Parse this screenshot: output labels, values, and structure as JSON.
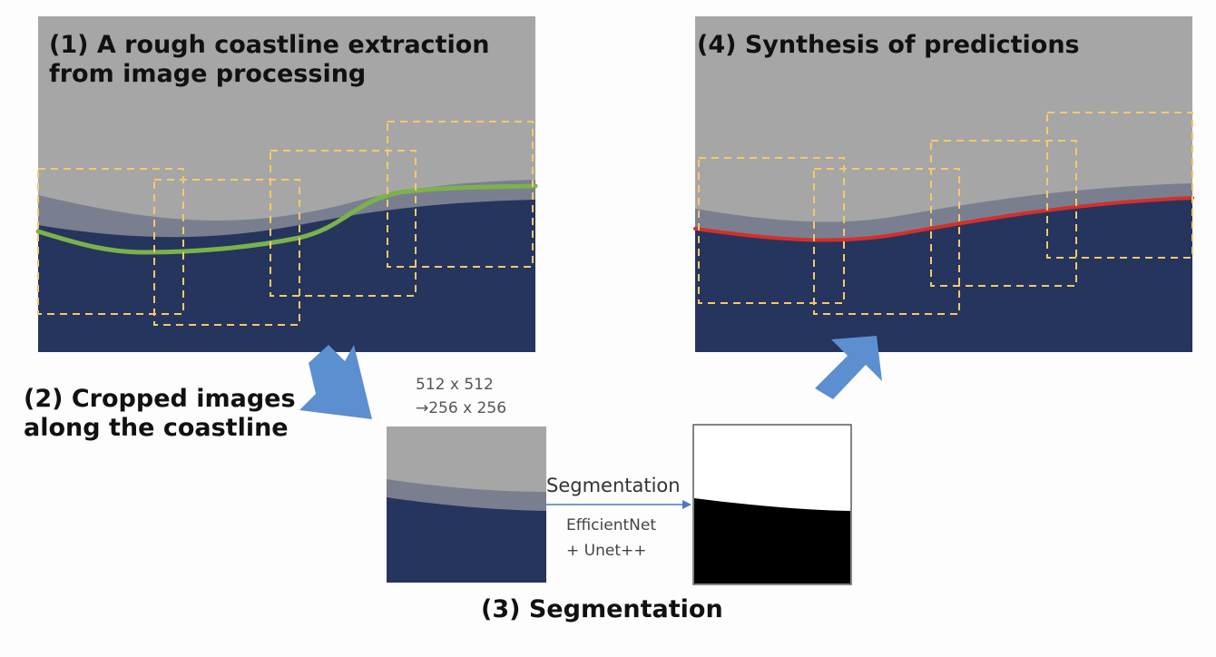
{
  "steps": {
    "step1_title": "(1) A rough coastline extraction from image processing",
    "step2_title": "(2) Cropped images along the coastline",
    "step3_title": "(3) Segmentation",
    "step4_title": "(4) Synthesis of predictions"
  },
  "crop": {
    "size_original": "512 x 512",
    "size_resized": "→256 x 256"
  },
  "segmentation": {
    "arrow_label": "Segmentation",
    "model_line1": "EfficientNet",
    "model_line2": "+ Unet++"
  },
  "colors": {
    "land": "#a6a6a6",
    "shore_band": "#7a7f90",
    "sea": "#25355d",
    "rough_line": "#7bb24a",
    "final_line": "#d42f2b",
    "crop_box": "#f5c96a",
    "arrow": "#5b8fd0",
    "mask_fg": "#000000",
    "mask_bg": "#ffffff"
  }
}
